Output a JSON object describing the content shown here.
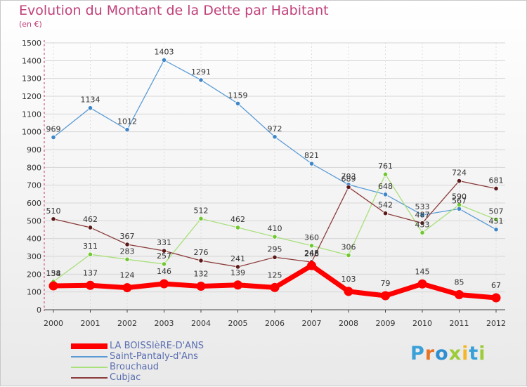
{
  "title": "Evolution du Montant de la Dette par Habitant",
  "subtitle": "(en €)",
  "brand": {
    "letters": [
      "P",
      "r",
      "o",
      "x",
      "i",
      "t",
      "i"
    ],
    "colors": [
      "#3aa0d8",
      "#e8742a",
      "#2f8fd0",
      "#9ccc3a",
      "#f2b82a",
      "#3aa0d8",
      "#9ccc3a"
    ]
  },
  "chart_data": {
    "type": "line",
    "title": "Evolution du Montant de la Dette par Habitant",
    "ylabel": "(en €)",
    "xlabel": "",
    "categories": [
      "2000",
      "2001",
      "2002",
      "2003",
      "2004",
      "2005",
      "2006",
      "2007",
      "2008",
      "2009",
      "2010",
      "2011",
      "2012"
    ],
    "ylim": [
      0,
      1500
    ],
    "yticks": [
      0,
      100,
      200,
      300,
      400,
      500,
      600,
      700,
      800,
      900,
      1000,
      1100,
      1200,
      1300,
      1400,
      1500
    ],
    "legend_position": "bottom-left",
    "series": [
      {
        "name": "LA BOISSIèRE-D'ANS",
        "color": "#ff0000",
        "thick": true,
        "values": [
          134,
          137,
          124,
          146,
          132,
          139,
          125,
          248,
          103,
          79,
          145,
          85,
          67
        ]
      },
      {
        "name": "Saint-Pantaly-d'Ans",
        "color": "#5b9bd5",
        "marker": "#3f86c8",
        "values": [
          969,
          1134,
          1012,
          1403,
          1291,
          1159,
          972,
          821,
          703,
          648,
          533,
          567,
          451
        ]
      },
      {
        "name": "Brouchaud",
        "color": "#a8e07a",
        "marker": "#72c834",
        "values": [
          158,
          311,
          283,
          257,
          512,
          462,
          410,
          360,
          306,
          761,
          433,
          590,
          507
        ]
      },
      {
        "name": "Cubjac",
        "color": "#8b3a3a",
        "marker": "#5a1a1a",
        "values": [
          510,
          462,
          367,
          331,
          276,
          241,
          295,
          268,
          689,
          542,
          487,
          724,
          681
        ]
      }
    ]
  }
}
